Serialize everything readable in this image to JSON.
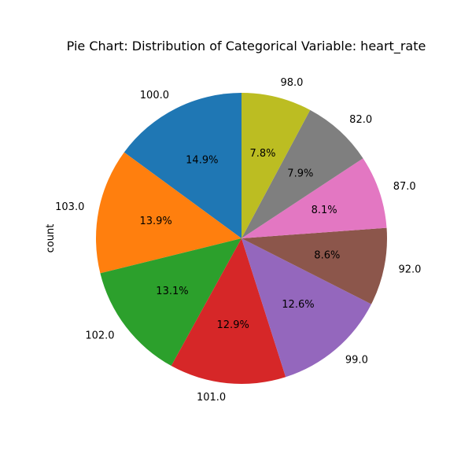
{
  "chart_data": {
    "type": "pie",
    "title": "Pie Chart: Distribution of Categorical Variable: heart_rate",
    "ylabel": "count",
    "categories": [
      "100.0",
      "103.0",
      "102.0",
      "101.0",
      "99.0",
      "92.0",
      "87.0",
      "82.0",
      "98.0"
    ],
    "values": [
      14.9,
      13.9,
      13.1,
      12.9,
      12.6,
      8.6,
      8.1,
      7.9,
      7.8
    ],
    "percent_labels": [
      "14.9%",
      "13.9%",
      "13.1%",
      "12.9%",
      "12.6%",
      "8.6%",
      "8.1%",
      "7.9%",
      "7.8%"
    ],
    "colors": [
      "#1f77b4",
      "#ff7f0e",
      "#2ca02c",
      "#d62728",
      "#9467bd",
      "#8c564b",
      "#e377c2",
      "#7f7f7f",
      "#bcbd22"
    ],
    "start_angle_deg": 90,
    "direction": "counterclockwise",
    "legend": "none"
  }
}
